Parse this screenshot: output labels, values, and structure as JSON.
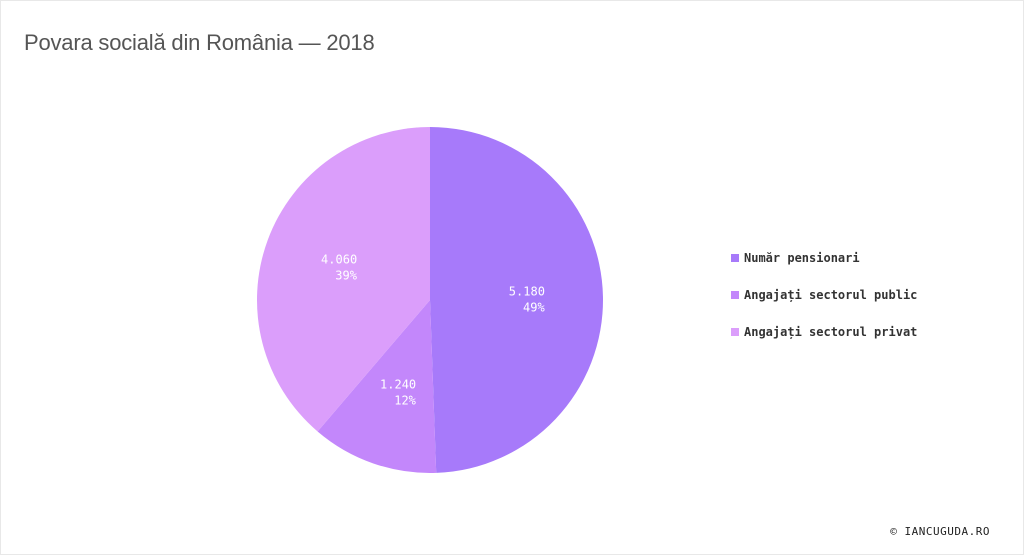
{
  "title": "Povara socială din România — 2018",
  "credit": "© IANCUGUDA.RO",
  "chart_data": {
    "type": "pie",
    "title": "Povara socială din România — 2018",
    "slices": [
      {
        "name": "Număr pensionari",
        "value": 5180,
        "value_label": "5.180",
        "percent_label": "49%",
        "color": "#a77afa"
      },
      {
        "name": "Angajați sectorul public",
        "value": 1240,
        "value_label": "1.240",
        "percent_label": "12%",
        "color": "#c387fb"
      },
      {
        "name": "Angajați sectorul privat",
        "value": 4060,
        "value_label": "4.060",
        "percent_label": "39%",
        "color": "#db9efb"
      }
    ],
    "start_angle_deg": 0,
    "direction": "clockwise",
    "legend_position": "right"
  }
}
